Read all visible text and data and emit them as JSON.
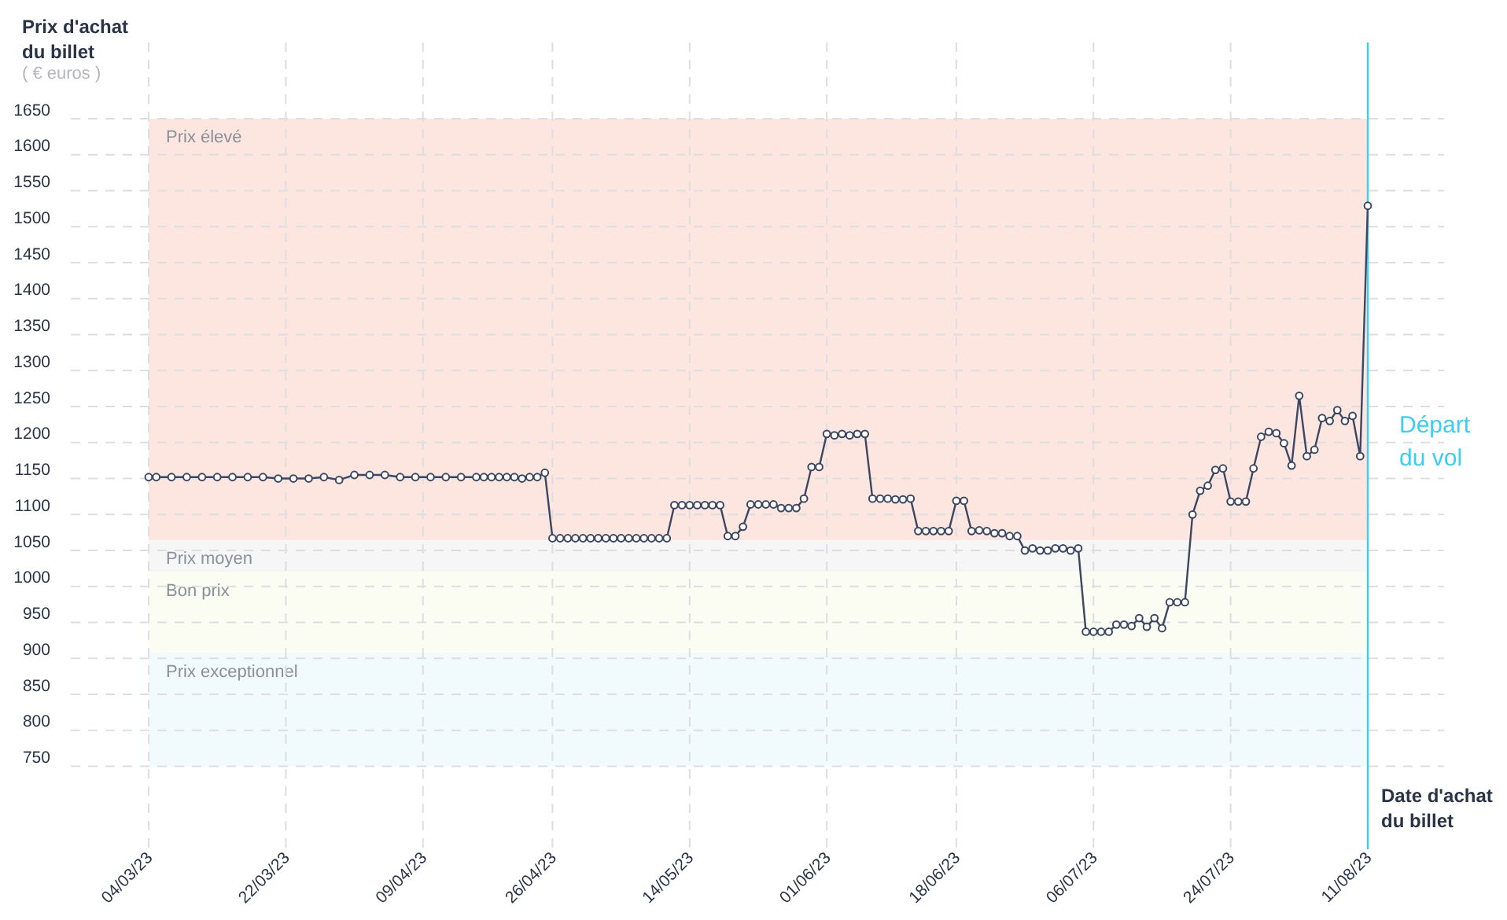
{
  "chart_data": {
    "type": "line",
    "ylabel": "Prix d'achat du billet",
    "xlabel": "Date d'achat du billet",
    "annotations": [
      "( € euros )"
    ],
    "x": [
      "2023-03-04",
      "2023-03-05",
      "2023-03-07",
      "2023-03-09",
      "2023-03-11",
      "2023-03-13",
      "2023-03-15",
      "2023-03-17",
      "2023-03-19",
      "2023-03-21",
      "2023-03-23",
      "2023-03-25",
      "2023-03-27",
      "2023-03-29",
      "2023-03-31",
      "2023-04-02",
      "2023-04-04",
      "2023-04-06",
      "2023-04-08",
      "2023-04-10",
      "2023-04-12",
      "2023-04-14",
      "2023-04-16",
      "2023-04-17",
      "2023-04-18",
      "2023-04-19",
      "2023-04-20",
      "2023-04-21",
      "2023-04-22",
      "2023-04-23",
      "2023-04-24",
      "2023-04-25",
      "2023-04-26",
      "2023-04-27",
      "2023-04-28",
      "2023-04-29",
      "2023-04-30",
      "2023-05-01",
      "2023-05-02",
      "2023-05-03",
      "2023-05-04",
      "2023-05-05",
      "2023-05-06",
      "2023-05-07",
      "2023-05-08",
      "2023-05-09",
      "2023-05-10",
      "2023-05-11",
      "2023-05-12",
      "2023-05-13",
      "2023-05-14",
      "2023-05-15",
      "2023-05-16",
      "2023-05-17",
      "2023-05-18",
      "2023-05-19",
      "2023-05-20",
      "2023-05-21",
      "2023-05-22",
      "2023-05-23",
      "2023-05-24",
      "2023-05-25",
      "2023-05-26",
      "2023-05-27",
      "2023-05-28",
      "2023-05-29",
      "2023-05-30",
      "2023-05-31",
      "2023-06-01",
      "2023-06-02",
      "2023-06-03",
      "2023-06-04",
      "2023-06-05",
      "2023-06-06",
      "2023-06-07",
      "2023-06-08",
      "2023-06-09",
      "2023-06-10",
      "2023-06-11",
      "2023-06-12",
      "2023-06-13",
      "2023-06-14",
      "2023-06-15",
      "2023-06-16",
      "2023-06-17",
      "2023-06-18",
      "2023-06-19",
      "2023-06-20",
      "2023-06-21",
      "2023-06-22",
      "2023-06-23",
      "2023-06-24",
      "2023-06-25",
      "2023-06-26",
      "2023-06-27",
      "2023-06-28",
      "2023-06-29",
      "2023-06-30",
      "2023-07-01",
      "2023-07-02",
      "2023-07-03",
      "2023-07-04",
      "2023-07-05",
      "2023-07-06",
      "2023-07-07",
      "2023-07-08",
      "2023-07-09",
      "2023-07-10",
      "2023-07-11",
      "2023-07-12",
      "2023-07-13",
      "2023-07-14",
      "2023-07-15",
      "2023-07-16",
      "2023-07-17",
      "2023-07-18",
      "2023-07-19",
      "2023-07-20",
      "2023-07-21",
      "2023-07-22",
      "2023-07-23",
      "2023-07-24",
      "2023-07-25",
      "2023-07-26",
      "2023-07-27",
      "2023-07-28",
      "2023-07-29",
      "2023-07-30",
      "2023-07-31",
      "2023-08-01",
      "2023-08-02",
      "2023-08-03",
      "2023-08-04",
      "2023-08-05",
      "2023-08-06",
      "2023-08-07",
      "2023-08-08",
      "2023-08-09",
      "2023-08-10",
      "2023-08-11"
    ],
    "series": [
      {
        "color": "#3b4661",
        "values": [
          1152,
          1152,
          1152,
          1152,
          1152,
          1152,
          1152,
          1152,
          1152,
          1150,
          1150,
          1150,
          1152,
          1148,
          1155,
          1155,
          1155,
          1152,
          1152,
          1152,
          1152,
          1152,
          1152,
          1152,
          1152,
          1152,
          1152,
          1152,
          1150,
          1152,
          1152,
          1158,
          1067,
          1067,
          1067,
          1067,
          1067,
          1067,
          1067,
          1067,
          1067,
          1067,
          1067,
          1067,
          1067,
          1067,
          1067,
          1067,
          1113,
          1113,
          1113,
          1113,
          1113,
          1113,
          1113,
          1070,
          1070,
          1083,
          1114,
          1114,
          1114,
          1114,
          1109,
          1109,
          1109,
          1122,
          1166,
          1166,
          1212,
          1210,
          1212,
          1210,
          1212,
          1212,
          1122,
          1122,
          1122,
          1121,
          1121,
          1122,
          1077,
          1077,
          1077,
          1077,
          1077,
          1119,
          1119,
          1077,
          1078,
          1077,
          1074,
          1074,
          1070,
          1070,
          1050,
          1053,
          1050,
          1050,
          1053,
          1053,
          1050,
          1053,
          937,
          937,
          937,
          937,
          947,
          947,
          945,
          956,
          944,
          956,
          942,
          978,
          978,
          978,
          1100,
          1133,
          1140,
          1162,
          1164,
          1118,
          1118,
          1118,
          1164,
          1208,
          1215,
          1213,
          1199,
          1168,
          1265,
          1181,
          1190,
          1234,
          1230,
          1245,
          1230,
          1237,
          1181,
          1529
        ]
      }
    ],
    "xlim": [
      "2023-03-04",
      "2023-08-11"
    ],
    "xticks": [
      {
        "value": "2023-03-04",
        "label": "04/03/23"
      },
      {
        "value": "2023-03-22",
        "label": "22/03/23"
      },
      {
        "value": "2023-04-09",
        "label": "09/04/23"
      },
      {
        "value": "2023-04-26",
        "label": "26/04/23"
      },
      {
        "value": "2023-05-14",
        "label": "14/05/23"
      },
      {
        "value": "2023-06-01",
        "label": "01/06/23"
      },
      {
        "value": "2023-06-18",
        "label": "18/06/23"
      },
      {
        "value": "2023-07-06",
        "label": "06/07/23"
      },
      {
        "value": "2023-07-24",
        "label": "24/07/23"
      },
      {
        "value": "2023-08-11",
        "label": "11/08/23"
      }
    ],
    "ylim": [
      750,
      1650
    ],
    "yticks": [
      750,
      800,
      850,
      900,
      950,
      1000,
      1050,
      1100,
      1150,
      1200,
      1250,
      1300,
      1350,
      1400,
      1450,
      1500,
      1550,
      1600,
      1650
    ],
    "bands": [
      {
        "axis": "y",
        "from": 1064,
        "to": 1650,
        "label": "Prix élevé",
        "color": "#fde6e0"
      },
      {
        "axis": "y",
        "from": 1020,
        "to": 1064,
        "label": "Prix moyen",
        "color": "#f6f6f7"
      },
      {
        "axis": "y",
        "from": 907,
        "to": 1020,
        "label": "Bon prix",
        "color": "#fbfcf2"
      },
      {
        "axis": "y",
        "from": 750,
        "to": 907,
        "label": "Prix exceptionnel",
        "color": "#f1fbfd"
      }
    ],
    "ref_lines": [
      {
        "axis": "x",
        "value": "2023-08-11",
        "label": "Départ du vol",
        "color": "#3ccdf2",
        "line_style": "solid"
      }
    ],
    "grid": true,
    "marker": "circle",
    "line_style": "solid"
  }
}
